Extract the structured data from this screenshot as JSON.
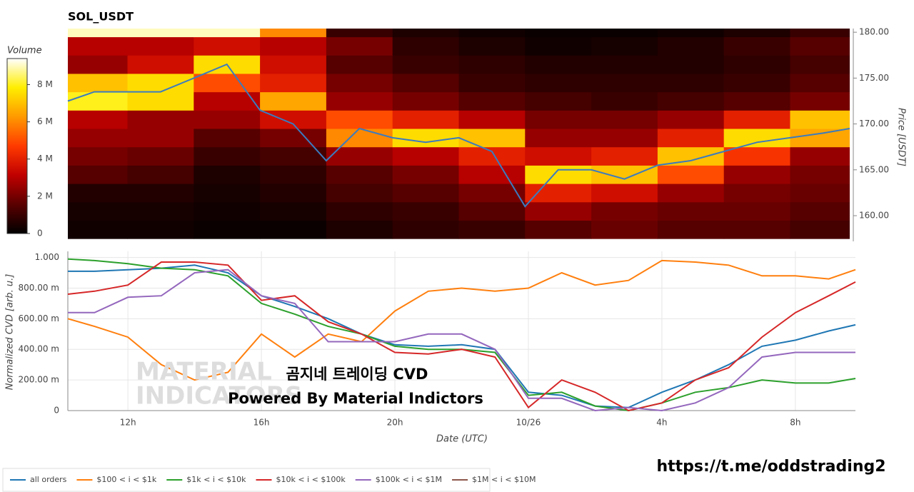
{
  "chart_data": [
    {
      "type": "heatmap",
      "title": "SOL_USDT",
      "colorbar_label": "Volume",
      "ylabel": "Price [USDT]",
      "xlim": [
        10.2,
        33.8
      ],
      "ylim": [
        157.2,
        180.4
      ],
      "yticks": [
        {
          "value": 160,
          "label": "160.00"
        },
        {
          "value": 165,
          "label": "165.00"
        },
        {
          "value": 170,
          "label": "170.00"
        },
        {
          "value": 175,
          "label": "175.00"
        },
        {
          "value": 180,
          "label": "180.00"
        }
      ],
      "zlim": [
        0,
        9.4
      ],
      "zticks": [
        0,
        {
          "value": 2,
          "label": "2 M"
        },
        {
          "value": 4,
          "label": "4 M"
        },
        {
          "value": 6,
          "label": "6 M"
        },
        {
          "value": 8,
          "label": "8 M"
        }
      ],
      "colorscale": [
        "#000000",
        "#5a0000",
        "#c00000",
        "#ff3a00",
        "#ff9900",
        "#ffee00",
        "#ffffff"
      ],
      "x_bins": [
        10,
        12,
        14,
        16,
        18,
        20,
        22,
        24,
        26,
        28,
        30,
        32,
        34
      ],
      "y_bins": [
        157.5,
        159.5,
        161.5,
        163.5,
        165.5,
        167.5,
        169.5,
        171.5,
        173.5,
        175.5,
        177.5,
        179.5,
        181.5
      ],
      "z": [
        [
          0.3,
          0.3,
          0.2,
          0.2,
          0.5,
          0.8,
          1.0,
          1.5,
          1.8,
          1.5,
          1.5,
          1.2
        ],
        [
          0.4,
          0.4,
          0.3,
          0.4,
          0.8,
          1.0,
          1.5,
          2.5,
          2.0,
          1.8,
          1.8,
          1.5
        ],
        [
          0.6,
          0.6,
          0.4,
          0.6,
          1.2,
          1.5,
          2.0,
          4.0,
          3.5,
          2.5,
          2.0,
          1.8
        ],
        [
          1.5,
          1.2,
          0.5,
          0.8,
          1.5,
          2.0,
          3.0,
          7.5,
          7.0,
          5.0,
          2.5,
          2.0
        ],
        [
          2.0,
          1.8,
          1.0,
          1.2,
          2.5,
          3.0,
          4.0,
          3.5,
          4.0,
          7.0,
          4.5,
          2.5
        ],
        [
          2.5,
          2.5,
          1.5,
          2.0,
          6.0,
          7.5,
          7.0,
          2.5,
          2.5,
          4.0,
          7.5,
          6.5
        ],
        [
          3.0,
          2.5,
          2.5,
          3.5,
          5.0,
          4.0,
          3.0,
          2.0,
          2.0,
          2.5,
          4.0,
          7.0
        ],
        [
          8.0,
          7.5,
          3.0,
          6.5,
          2.5,
          2.0,
          1.5,
          1.2,
          1.0,
          1.2,
          1.5,
          2.0
        ],
        [
          7.0,
          7.5,
          5.0,
          4.0,
          2.0,
          1.5,
          1.0,
          0.8,
          0.8,
          0.8,
          1.0,
          1.5
        ],
        [
          2.5,
          3.5,
          7.5,
          3.5,
          1.5,
          1.0,
          0.8,
          0.6,
          0.6,
          0.6,
          0.8,
          1.2
        ],
        [
          3.0,
          3.0,
          3.5,
          3.0,
          2.0,
          0.8,
          0.5,
          0.3,
          0.4,
          0.6,
          1.0,
          1.5
        ],
        [
          9.0,
          9.0,
          9.0,
          6.0,
          1.0,
          0.5,
          0.3,
          0.2,
          0.2,
          0.3,
          0.5,
          1.0
        ]
      ],
      "price": {
        "color": "#3b7bbf",
        "x": [
          10.2,
          11,
          12,
          13,
          14,
          15,
          16,
          17,
          18,
          19,
          20,
          21,
          22,
          23,
          24,
          25,
          26,
          27,
          28,
          29,
          30,
          31,
          32,
          33,
          33.8
        ],
        "values": [
          172.5,
          173.5,
          173.5,
          173.5,
          175,
          176.5,
          171.5,
          170,
          166,
          169.5,
          168.5,
          168,
          168.5,
          167,
          161,
          165,
          165,
          164,
          165.5,
          166,
          167,
          168,
          168.5,
          169,
          169.5
        ]
      }
    },
    {
      "type": "line",
      "xlabel": "Date (UTC)",
      "ylabel": "Normalized CVD [arb. u.]",
      "grid": true,
      "xlim": [
        10.2,
        33.8
      ],
      "ylim": [
        0,
        1.04
      ],
      "xticks": [
        {
          "value": 12,
          "label": "12h"
        },
        {
          "value": 16,
          "label": "16h"
        },
        {
          "value": 20,
          "label": "20h"
        },
        {
          "value": 24,
          "label": "10/26"
        },
        {
          "value": 28,
          "label": "4h"
        },
        {
          "value": 32,
          "label": "8h"
        }
      ],
      "yticks": [
        0,
        {
          "value": 0.2,
          "label": "200.00 m"
        },
        {
          "value": 0.4,
          "label": "400.00 m"
        },
        {
          "value": 0.6,
          "label": "600.00 m"
        },
        {
          "value": 0.8,
          "label": "800.00 m"
        },
        {
          "value": 1,
          "label": "1.000"
        }
      ],
      "x": [
        10.2,
        11,
        12,
        13,
        14,
        15,
        16,
        17,
        18,
        19,
        20,
        21,
        22,
        23,
        24,
        25,
        26,
        27,
        28,
        29,
        30,
        31,
        32,
        33,
        33.8
      ],
      "series": [
        {
          "name": "all orders",
          "color": "#1f77b4",
          "values": [
            0.91,
            0.91,
            0.92,
            0.93,
            0.95,
            0.9,
            0.75,
            0.68,
            0.6,
            0.5,
            0.43,
            0.42,
            0.43,
            0.4,
            0.12,
            0.1,
            0.03,
            0.02,
            0.12,
            0.2,
            0.3,
            0.42,
            0.46,
            0.52,
            0.56
          ]
        },
        {
          "name": "$100 < i < $1k",
          "color": "#ff7f0e",
          "values": [
            0.6,
            0.55,
            0.48,
            0.3,
            0.2,
            0.25,
            0.5,
            0.35,
            0.5,
            0.45,
            0.65,
            0.78,
            0.8,
            0.78,
            0.8,
            0.9,
            0.82,
            0.85,
            0.98,
            0.97,
            0.95,
            0.88,
            0.88,
            0.86,
            0.92
          ]
        },
        {
          "name": "$1k < i < $10k",
          "color": "#2ca02c",
          "values": [
            0.99,
            0.98,
            0.96,
            0.93,
            0.92,
            0.88,
            0.7,
            0.63,
            0.55,
            0.5,
            0.42,
            0.4,
            0.4,
            0.38,
            0.1,
            0.12,
            0.03,
            0.0,
            0.05,
            0.12,
            0.15,
            0.2,
            0.18,
            0.18,
            0.21
          ]
        },
        {
          "name": "$10k < i < $100k",
          "color": "#d62728",
          "values": [
            0.76,
            0.78,
            0.82,
            0.97,
            0.97,
            0.95,
            0.72,
            0.75,
            0.58,
            0.5,
            0.38,
            0.37,
            0.4,
            0.35,
            0.02,
            0.2,
            0.12,
            0.0,
            0.05,
            0.2,
            0.28,
            0.48,
            0.64,
            0.75,
            0.84
          ]
        },
        {
          "name": "$100k < i < $1M",
          "color": "#9467bd",
          "values": [
            0.64,
            0.64,
            0.74,
            0.75,
            0.9,
            0.92,
            0.75,
            0.7,
            0.45,
            0.45,
            0.45,
            0.5,
            0.5,
            0.4,
            0.08,
            0.08,
            0.0,
            0.02,
            0.0,
            0.05,
            0.15,
            0.35,
            0.38,
            0.38,
            0.38
          ]
        },
        {
          "name": "$1M < i < $10M",
          "color": "#8c564b",
          "values": [
            null,
            null,
            null,
            null,
            null,
            null,
            null,
            null,
            null,
            null,
            null,
            null,
            null,
            null,
            null,
            null,
            null,
            null,
            null,
            null,
            null,
            null,
            null,
            null,
            null
          ]
        }
      ]
    }
  ],
  "watermark": [
    "MATERIAL",
    "INDICATORS"
  ],
  "overlay": {
    "title": "곰지네 트레이딩 CVD",
    "subtitle": "Powered By Material Indictors"
  },
  "link": "https://t.me/oddstrading2"
}
